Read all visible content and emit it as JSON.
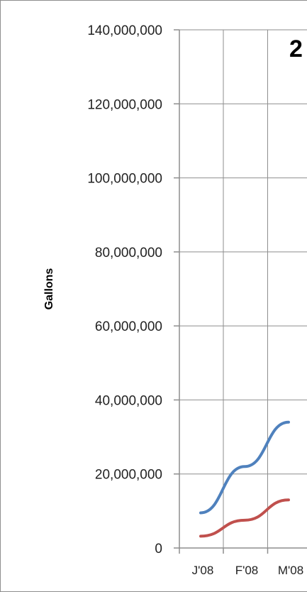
{
  "chart_data": {
    "type": "line",
    "title": "2",
    "xlabel": "",
    "ylabel": "Gallons",
    "categories": [
      "J'08",
      "F'08",
      "M'08"
    ],
    "ylim": [
      0,
      140000000
    ],
    "yticks": [
      0,
      20000000,
      40000000,
      60000000,
      80000000,
      100000000,
      120000000,
      140000000
    ],
    "ytick_labels": [
      "0",
      "20,000,000",
      "40,000,000",
      "60,000,000",
      "80,000,000",
      "100,000,000",
      "120,000,000",
      "140,000,000"
    ],
    "grid": true,
    "series": [
      {
        "color": "#4f81bd",
        "values": [
          9500000,
          22000000,
          34000000
        ]
      },
      {
        "color": "#c0504d",
        "values": [
          3200000,
          7500000,
          13000000
        ]
      }
    ]
  }
}
